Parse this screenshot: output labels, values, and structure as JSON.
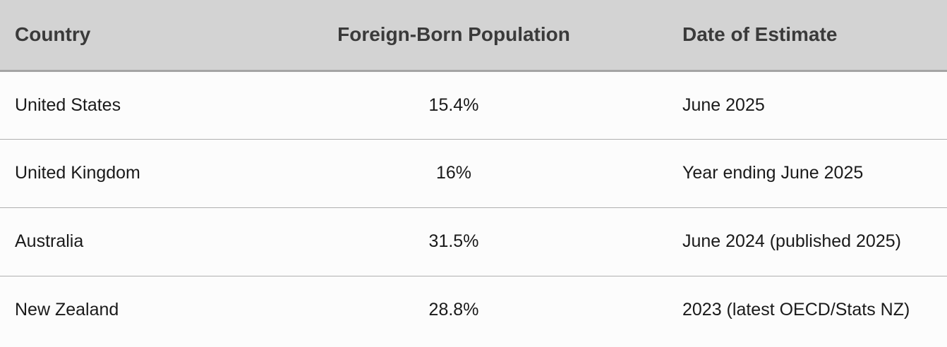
{
  "table": {
    "header": [
      "Country",
      "Foreign-Born Population",
      "Date of Estimate"
    ],
    "rows": [
      [
        "United States",
        "15.4%",
        "June 2025"
      ],
      [
        "United Kingdom",
        "16%",
        "Year ending June 2025"
      ],
      [
        "Australia",
        "31.5%",
        "June 2024 (published 2025)"
      ],
      [
        "New Zealand",
        "28.8%",
        "2023 (latest OECD/Stats NZ)"
      ]
    ]
  }
}
